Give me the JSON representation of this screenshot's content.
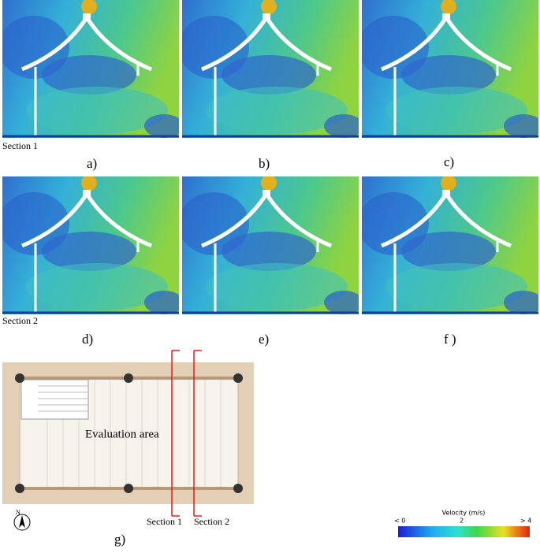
{
  "panels": [
    {
      "label": "a)"
    },
    {
      "label": "b)"
    },
    {
      "label": "c)"
    },
    {
      "label": "d)"
    },
    {
      "label": "e)"
    },
    {
      "label": "f )"
    }
  ],
  "section_labels": [
    "Section 1",
    "Section 2"
  ],
  "plan": {
    "area_label": "Evaluation area",
    "sections": [
      "Section 1",
      "Section 2"
    ],
    "north": "N",
    "caption": "g)"
  },
  "colorbar": {
    "title": "Velocity (m/s)",
    "ticks": [
      "< 0",
      "2",
      "> 4"
    ]
  }
}
